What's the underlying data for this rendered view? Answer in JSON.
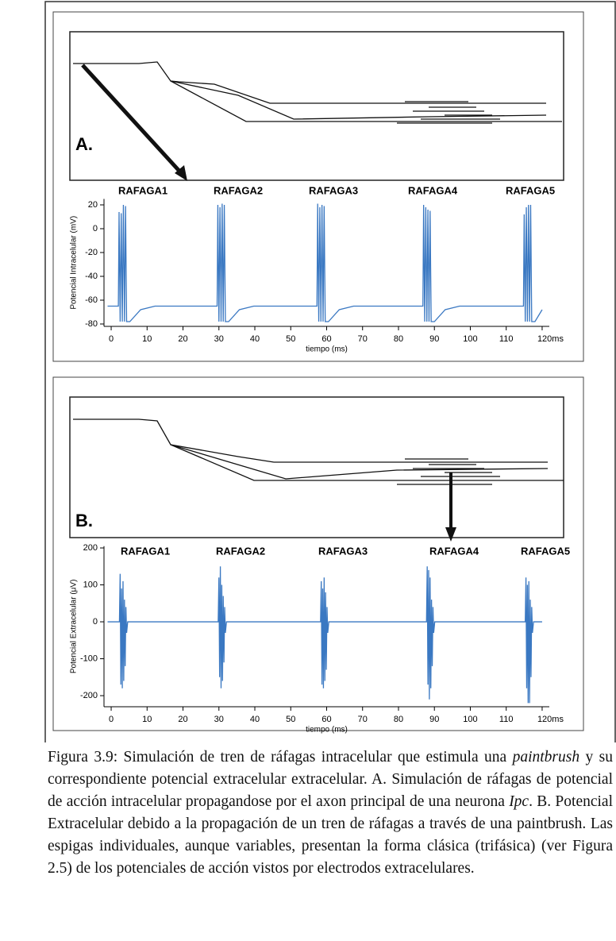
{
  "panels": [
    {
      "label": "A."
    },
    {
      "label": "B."
    }
  ],
  "chart_data": [
    {
      "type": "line",
      "y_label": "Potencial Intracelular (mV)",
      "x_label": "tiempo (ms)",
      "annotations": [
        "RAFAGA1",
        "RAFAGA2",
        "RAFAGA3",
        "RAFAGA4",
        "RAFAGA5"
      ],
      "xlim": [
        -2,
        122
      ],
      "ylim": [
        -82,
        25
      ],
      "xticks": [
        0,
        10,
        20,
        30,
        40,
        50,
        60,
        70,
        80,
        90,
        100,
        110,
        {
          "value": 120,
          "label": "120ms"
        }
      ],
      "yticks": [
        20,
        0,
        -20,
        -40,
        -60,
        -80
      ],
      "series": [
        {
          "color": "#3a78c2",
          "x": [
            -1,
            2.0,
            2.2,
            2.5,
            2.8,
            3.1,
            3.4,
            3.7,
            4.0,
            4.3,
            5.2,
            8.2,
            12.2,
            29.5,
            29.7,
            30,
            30.3,
            30.6,
            30.9,
            31.2,
            31.5,
            31.8,
            32.7,
            35.7,
            39.7,
            57.3,
            57.5,
            57.8,
            58.1,
            58.4,
            58.7,
            59,
            59.3,
            59.6,
            60.5,
            63.5,
            67.5,
            86.8,
            87,
            87.3,
            87.6,
            87.9,
            88.2,
            88.5,
            88.8,
            89.1,
            90,
            93,
            97,
            114.8,
            115,
            115.3,
            115.6,
            115.9,
            116.2,
            116.5,
            116.8,
            117.1,
            118,
            120
          ],
          "values": [
            -65,
            -65,
            14,
            -78,
            13,
            -78,
            20,
            -78,
            19,
            -78,
            -78,
            -68,
            -65,
            -65,
            20,
            -78,
            18,
            -78,
            21,
            -78,
            20,
            -78,
            -78,
            -68,
            -65,
            -65,
            21,
            -78,
            18,
            -78,
            20,
            -78,
            19,
            -78,
            -78,
            -68,
            -65,
            -65,
            20,
            -78,
            18,
            -78,
            16,
            -78,
            15,
            -78,
            -78,
            -68,
            -65,
            -65,
            12,
            -78,
            18,
            -78,
            20,
            -78,
            20,
            -78,
            -78,
            -68
          ]
        }
      ]
    },
    {
      "type": "line",
      "y_label": "Potencial Extracelular (μV)",
      "x_label": "tiempo (ms)",
      "annotations": [
        "RAFAGA1",
        "RAFAGA2",
        "RAFAGA3",
        "RAFAGA4",
        "RAFAGA5"
      ],
      "xlim": [
        -2,
        122
      ],
      "ylim": [
        -230,
        205
      ],
      "xticks": [
        0,
        10,
        20,
        30,
        40,
        50,
        60,
        70,
        80,
        90,
        100,
        110,
        {
          "value": 120,
          "label": "120ms"
        }
      ],
      "yticks": [
        200,
        100,
        0,
        -100,
        -200
      ],
      "series": [
        {
          "color": "#3a78c2",
          "x": [
            -1,
            2.3,
            2.5,
            2.7,
            2.9,
            3.1,
            3.3,
            3.5,
            3.7,
            3.9,
            4.1,
            4.3,
            4.6,
            29.8,
            30,
            30.2,
            30.4,
            30.6,
            30.8,
            31,
            31.2,
            31.4,
            31.6,
            31.8,
            32.1,
            58.3,
            58.5,
            58.7,
            58.9,
            59.1,
            59.3,
            59.5,
            59.7,
            59.9,
            60.1,
            60.3,
            60.6,
            87.8,
            88,
            88.2,
            88.4,
            88.6,
            88.8,
            89,
            89.2,
            89.4,
            89.6,
            89.8,
            90.1,
            115.3,
            115.5,
            115.7,
            115.9,
            116.1,
            116.3,
            116.5,
            116.7,
            116.9,
            117.1,
            117.3,
            117.6,
            120
          ],
          "values": [
            0,
            0,
            130,
            -170,
            90,
            -180,
            110,
            -160,
            60,
            -120,
            40,
            -30,
            0,
            0,
            120,
            -150,
            150,
            -180,
            100,
            -160,
            70,
            -110,
            40,
            -30,
            0,
            0,
            110,
            -170,
            90,
            -180,
            120,
            -160,
            80,
            -130,
            40,
            -30,
            0,
            0,
            150,
            -170,
            140,
            -210,
            120,
            -180,
            60,
            -120,
            40,
            -30,
            0,
            0,
            120,
            -180,
            100,
            -220,
            110,
            -220,
            60,
            -150,
            40,
            -30,
            0,
            0
          ]
        }
      ]
    }
  ],
  "caption": [
    "Figura 3.9: Simulación de tren de ráfagas intracelular que estimula una ",
    "paintbrush",
    " y su correspondiente potencial extracelular extracelular. A. Simulación de ráfagas de potencial de acción intracelular propagandose por el axon principal de una neurona ",
    "Ipc",
    ". B. Potencial Extracelular debido a la propagación de un tren de ráfagas a través de una paintbrush. Las espigas individuales, aunque variables, presentan la forma clásica (trifásica) (ver Figura 2.5) de los potenciales de acción vistos por electrodos extracelulares."
  ]
}
